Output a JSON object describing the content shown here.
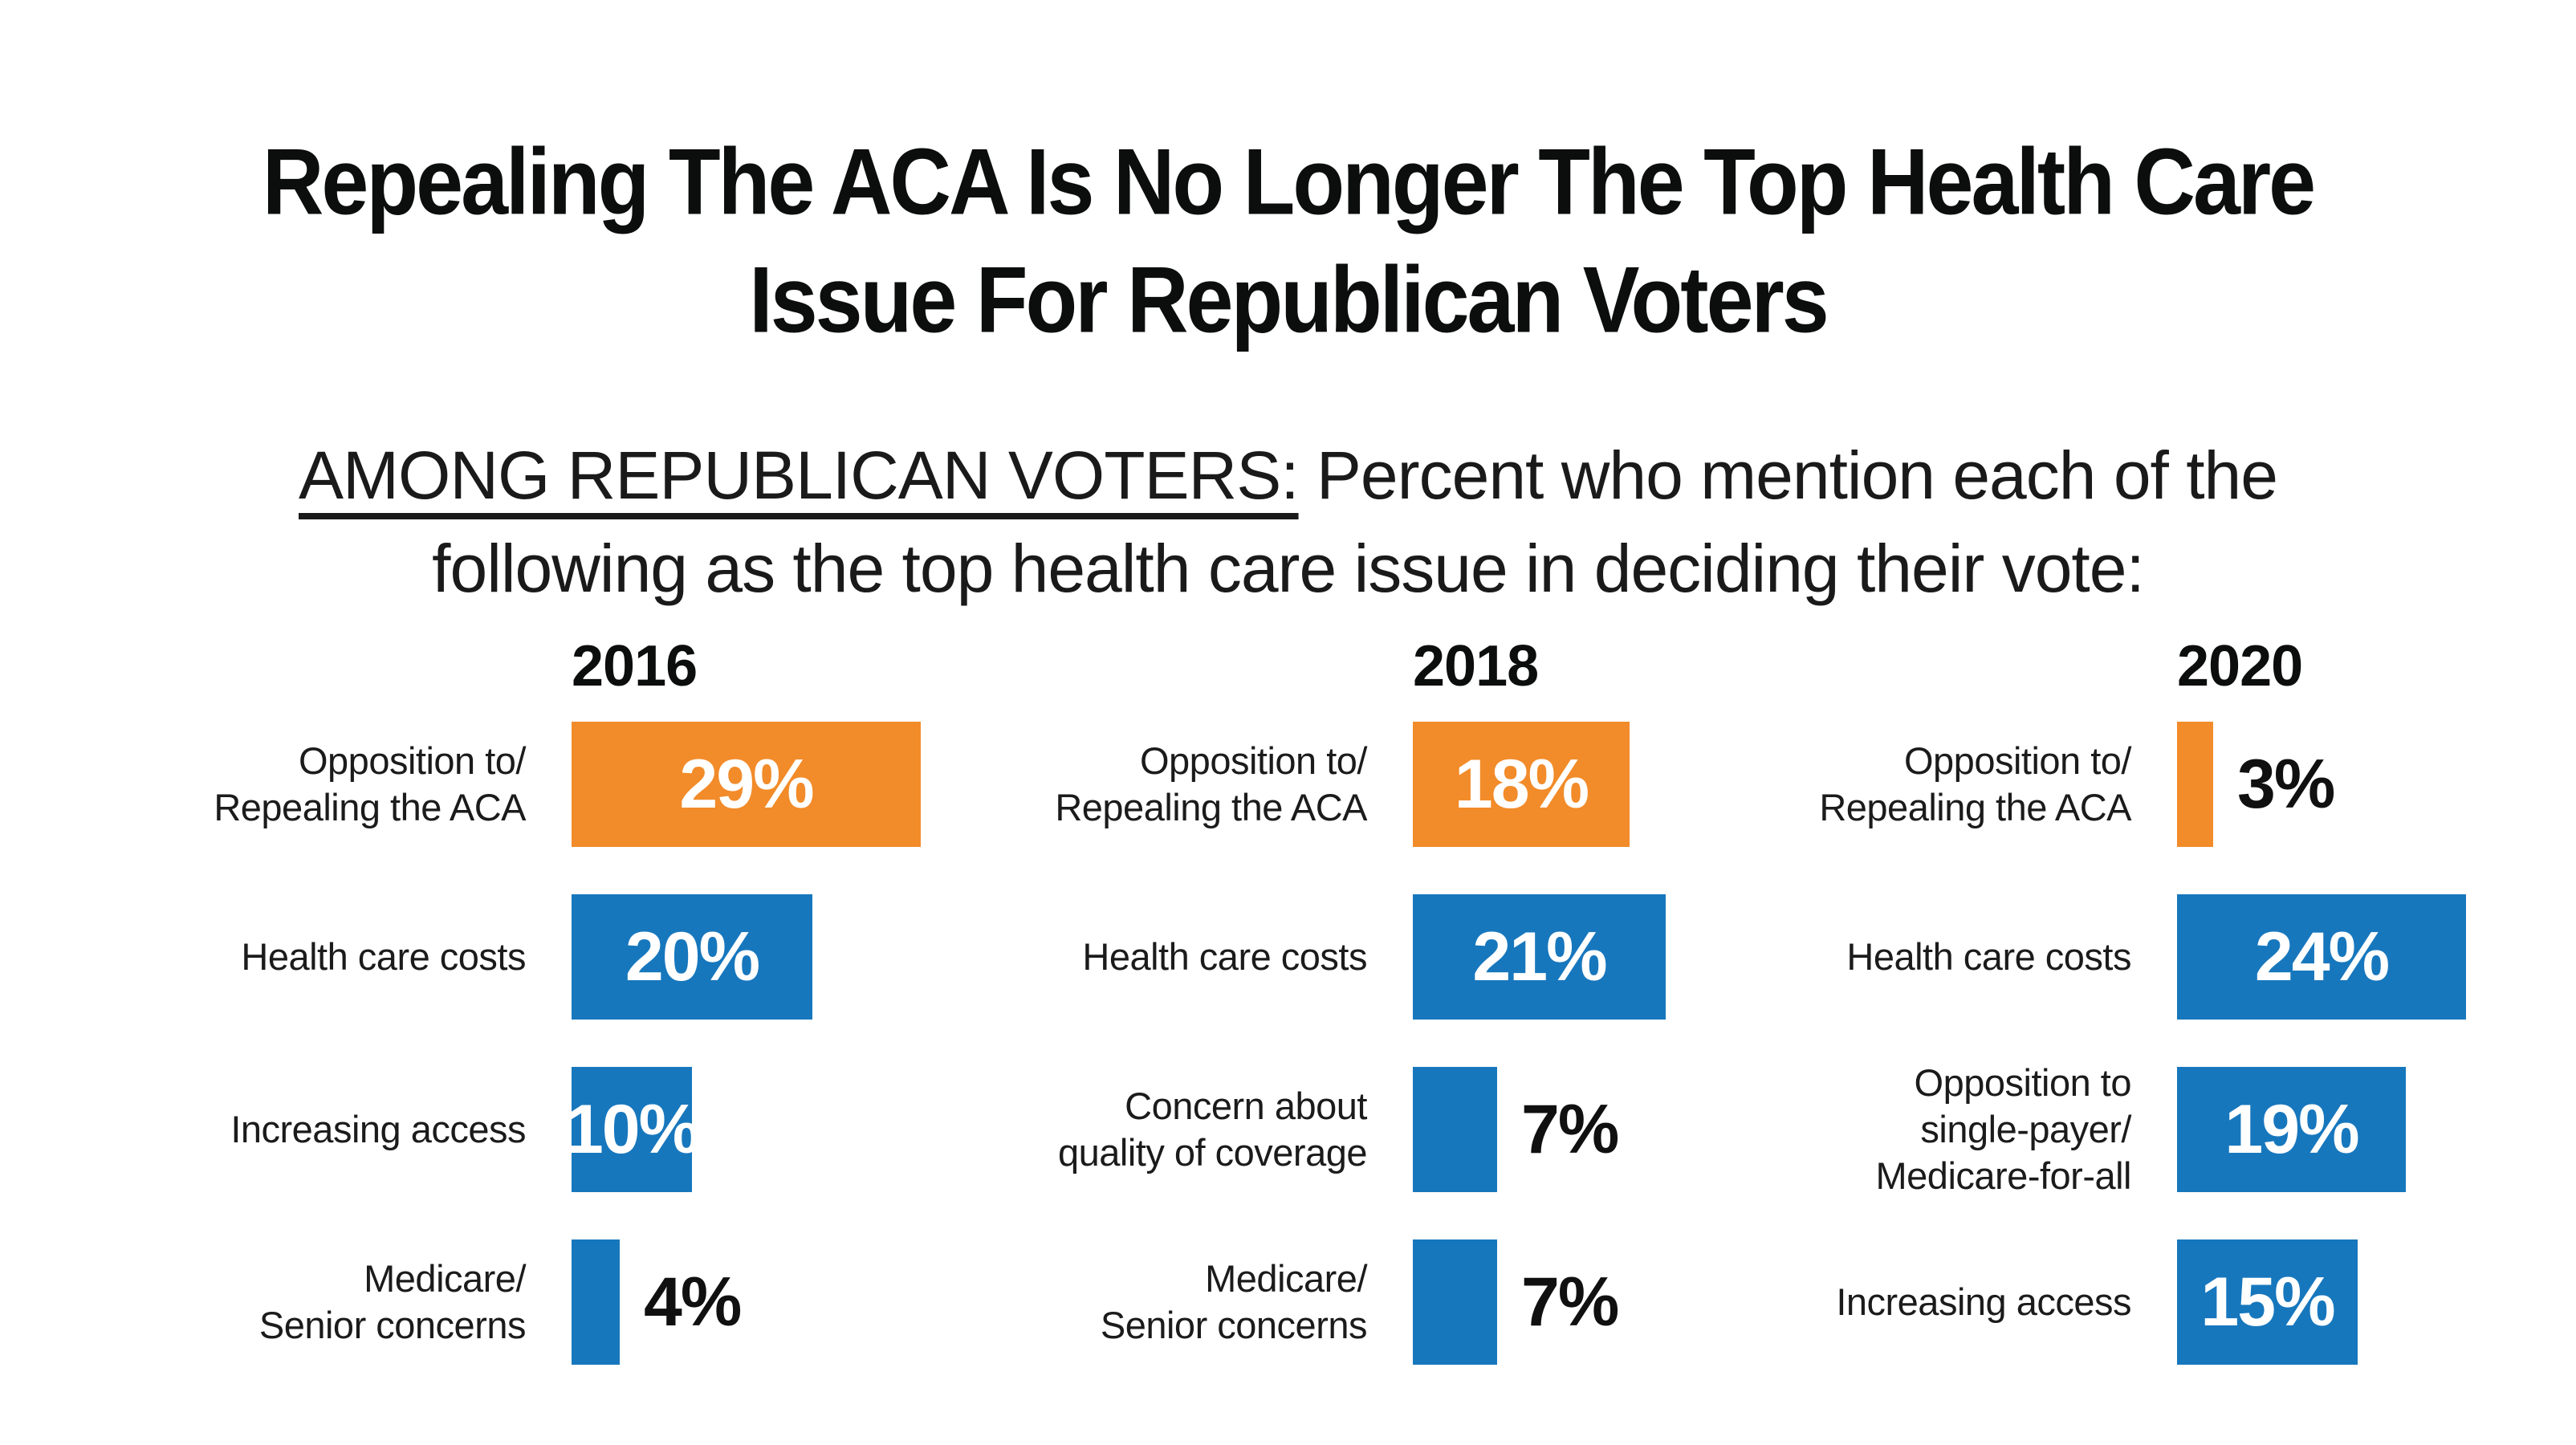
{
  "title": {
    "full": "Repealing The ACA Is No Longer The Top Health Care Issue For Republican Voters",
    "line1": "Repealing The ACA Is No Longer The Top Health Care",
    "line2": "Issue For Republican Voters"
  },
  "subtitle": {
    "lead_underlined": "AMONG REPUBLICAN VOTERS:",
    "line1_rest": " Percent who mention each of the",
    "line2": "following as the top health care issue in deciding their vote:"
  },
  "chart_data": {
    "type": "bar",
    "orientation": "horizontal",
    "unit": "percent",
    "title": "Repealing The ACA Is No Longer The Top Health Care Issue For Republican Voters",
    "subtitle": "AMONG REPUBLICAN VOTERS: Percent who mention each of the following as the top health care issue in deciding their vote:",
    "xlim": [
      0,
      30
    ],
    "colors": {
      "orange": "#F28B29",
      "blue": "#1777BD"
    },
    "columns": [
      {
        "year": "2016",
        "rows": [
          {
            "label_lines": [
              "Opposition to/",
              "Repealing the ACA"
            ],
            "value": 29,
            "pct_label": "29%",
            "color": "orange"
          },
          {
            "label_lines": [
              "Health care costs"
            ],
            "value": 20,
            "pct_label": "20%",
            "color": "blue"
          },
          {
            "label_lines": [
              "Increasing access"
            ],
            "value": 10,
            "pct_label": "10%",
            "color": "blue"
          },
          {
            "label_lines": [
              "Medicare/",
              "Senior concerns"
            ],
            "value": 4,
            "pct_label": "4%",
            "color": "blue"
          }
        ]
      },
      {
        "year": "2018",
        "rows": [
          {
            "label_lines": [
              "Opposition to/",
              "Repealing the ACA"
            ],
            "value": 18,
            "pct_label": "18%",
            "color": "orange"
          },
          {
            "label_lines": [
              "Health care costs"
            ],
            "value": 21,
            "pct_label": "21%",
            "color": "blue"
          },
          {
            "label_lines": [
              "Concern about",
              "quality of coverage"
            ],
            "value": 7,
            "pct_label": "7%",
            "color": "blue"
          },
          {
            "label_lines": [
              "Medicare/",
              "Senior concerns"
            ],
            "value": 7,
            "pct_label": "7%",
            "color": "blue"
          }
        ]
      },
      {
        "year": "2020",
        "rows": [
          {
            "label_lines": [
              "Opposition to/",
              "Repealing the ACA"
            ],
            "value": 3,
            "pct_label": "3%",
            "color": "orange"
          },
          {
            "label_lines": [
              "Health care costs"
            ],
            "value": 24,
            "pct_label": "24%",
            "color": "blue"
          },
          {
            "label_lines": [
              "Opposition to",
              "single-payer/",
              "Medicare-for-all"
            ],
            "value": 19,
            "pct_label": "19%",
            "color": "blue"
          },
          {
            "label_lines": [
              "Increasing access"
            ],
            "value": 15,
            "pct_label": "15%",
            "color": "blue"
          }
        ]
      }
    ]
  }
}
